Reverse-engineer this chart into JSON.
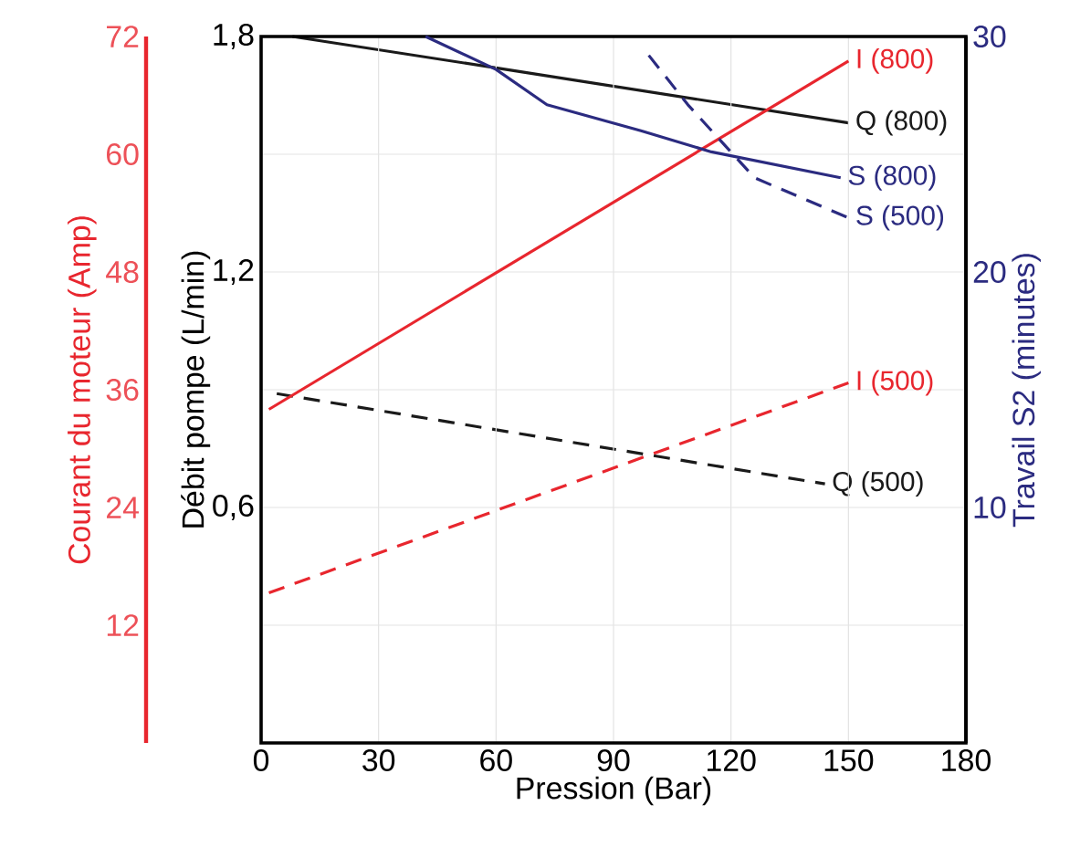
{
  "chart_data": {
    "type": "line",
    "xlabel": "Pression (Bar)",
    "ylabel": "Débit pompe (L/min)",
    "y2label": "Courant du moteur (Amp)",
    "y3label": "Travail S2 (minutes)",
    "xlim": [
      0,
      180
    ],
    "xticks": [
      0,
      30,
      60,
      90,
      120,
      150,
      180
    ],
    "ylim": [
      0,
      1.8
    ],
    "yticks": [
      {
        "value": 0.3,
        "label": null
      },
      {
        "value": 0.6,
        "label": "0,6"
      },
      {
        "value": 0.9,
        "label": null
      },
      {
        "value": 1.2,
        "label": "1,2"
      },
      {
        "value": 1.5,
        "label": null
      },
      {
        "value": 1.8,
        "label": "1,8"
      }
    ],
    "y2lim": [
      0,
      72
    ],
    "y2ticks": [
      12,
      24,
      36,
      48,
      60,
      72
    ],
    "y3lim": [
      0,
      30
    ],
    "y3ticks": [
      10,
      20,
      30
    ],
    "grid": true,
    "series": [
      {
        "name": "Q (800)",
        "color": "#1a1a1a",
        "axis": "y",
        "line_style": "solid",
        "x": [
          8,
          60,
          150
        ],
        "values": [
          1.8,
          1.72,
          1.58
        ]
      },
      {
        "name": "Q (500)",
        "color": "#1a1a1a",
        "axis": "y",
        "line_style": "dashed",
        "x": [
          4,
          144
        ],
        "values": [
          0.89,
          0.66
        ]
      },
      {
        "name": "I (800)",
        "color": "#e8262e",
        "axis": "y2",
        "line_style": "solid",
        "x": [
          2,
          150
        ],
        "values": [
          34,
          69.5
        ]
      },
      {
        "name": "I (500)",
        "color": "#e8262e",
        "axis": "y2",
        "line_style": "dashed",
        "x": [
          2,
          150
        ],
        "values": [
          15.3,
          36.7
        ]
      },
      {
        "name": "S (800)",
        "color": "#2b2b80",
        "axis": "y3",
        "line_style": "solid",
        "x": [
          42,
          60,
          73,
          97,
          115,
          148
        ],
        "values": [
          30,
          28.6,
          27.1,
          26.0,
          25.1,
          24.0
        ]
      },
      {
        "name": "S (500)",
        "color": "#2b2b80",
        "axis": "y3",
        "line_style": "dashed",
        "x": [
          99,
          109,
          126,
          150
        ],
        "values": [
          29.2,
          27.1,
          24.0,
          22.3
        ]
      }
    ]
  }
}
